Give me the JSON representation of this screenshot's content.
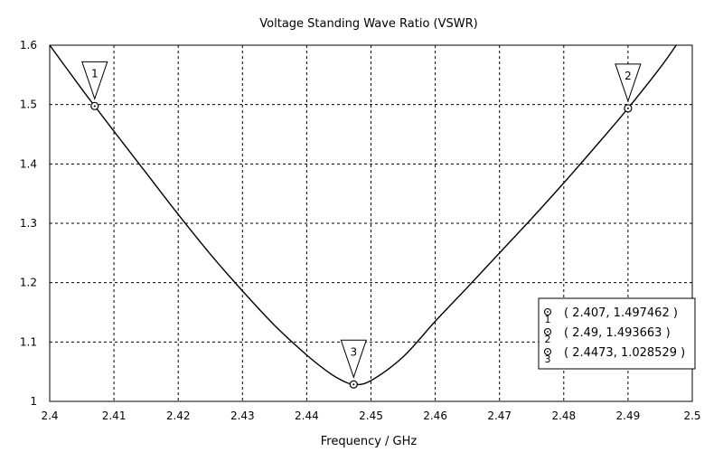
{
  "chart_data": {
    "type": "line",
    "title": "Voltage Standing Wave Ratio (VSWR)",
    "xlabel": "Frequency / GHz",
    "ylabel": "",
    "xlim": [
      2.4,
      2.5
    ],
    "ylim": [
      1.0,
      1.6
    ],
    "xticks": [
      "2.4",
      "2.41",
      "2.42",
      "2.43",
      "2.44",
      "2.45",
      "2.46",
      "2.47",
      "2.48",
      "2.49",
      "2.5"
    ],
    "yticks": [
      "1",
      "1.1",
      "1.2",
      "1.3",
      "1.4",
      "1.5",
      "1.6"
    ],
    "grid": true,
    "series": [
      {
        "color": "#000000",
        "x": [
          2.4,
          2.405,
          2.407,
          2.41,
          2.415,
          2.42,
          2.425,
          2.43,
          2.435,
          2.44,
          2.443,
          2.445,
          2.4473,
          2.45,
          2.455,
          2.46,
          2.465,
          2.47,
          2.475,
          2.48,
          2.485,
          2.49,
          2.495,
          2.4975
        ],
        "y": [
          1.6,
          1.526,
          1.4975,
          1.455,
          1.385,
          1.315,
          1.248,
          1.186,
          1.128,
          1.078,
          1.052,
          1.038,
          1.0285,
          1.035,
          1.075,
          1.135,
          1.192,
          1.25,
          1.308,
          1.368,
          1.43,
          1.4937,
          1.562,
          1.6
        ]
      }
    ],
    "markers": [
      {
        "label": "1",
        "x": 2.407,
        "y": 1.497462,
        "readout": "( 2.407, 1.497462 )"
      },
      {
        "label": "2",
        "x": 2.49,
        "y": 1.493663,
        "readout": "( 2.49, 1.493663 )"
      },
      {
        "label": "3",
        "x": 2.4473,
        "y": 1.028529,
        "readout": "( 2.4473, 1.028529 )"
      }
    ],
    "legend_position": "bottom-right"
  }
}
